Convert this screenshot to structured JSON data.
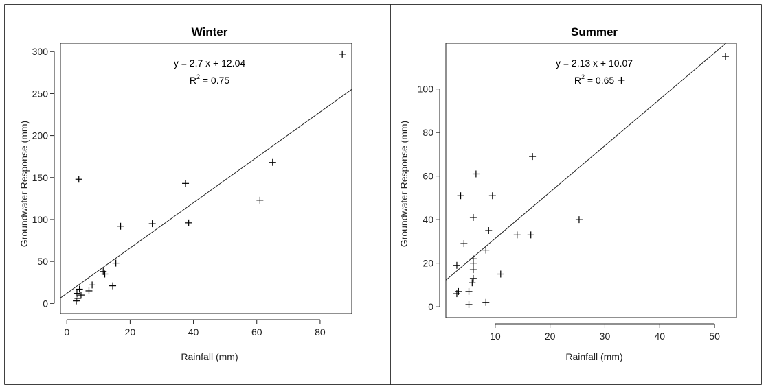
{
  "chart_data": [
    {
      "type": "scatter",
      "title": "Winter",
      "xlabel": "Rainfall (mm)",
      "ylabel": "Groundwater Response (mm)",
      "xlim": [
        -2,
        90
      ],
      "ylim": [
        -12,
        310
      ],
      "xticks": [
        0,
        20,
        40,
        60,
        80
      ],
      "yticks": [
        0,
        50,
        100,
        150,
        200,
        250,
        300
      ],
      "grid": false,
      "legend": "none",
      "annotations": [
        "y = 2.7 x + 12.04",
        "R",
        "2",
        " =  0.75"
      ],
      "fit": {
        "slope": 2.7,
        "intercept": 12.04
      },
      "points": [
        {
          "x": 3,
          "y": 3
        },
        {
          "x": 3.5,
          "y": 6
        },
        {
          "x": 3.2,
          "y": 12
        },
        {
          "x": 4,
          "y": 17
        },
        {
          "x": 4.5,
          "y": 10
        },
        {
          "x": 3.8,
          "y": 148
        },
        {
          "x": 7,
          "y": 15
        },
        {
          "x": 8,
          "y": 22
        },
        {
          "x": 11.5,
          "y": 38
        },
        {
          "x": 12,
          "y": 35
        },
        {
          "x": 14.5,
          "y": 21
        },
        {
          "x": 15.5,
          "y": 48
        },
        {
          "x": 17,
          "y": 92
        },
        {
          "x": 27,
          "y": 95
        },
        {
          "x": 37.5,
          "y": 143
        },
        {
          "x": 38.5,
          "y": 96
        },
        {
          "x": 61,
          "y": 123
        },
        {
          "x": 65,
          "y": 168
        },
        {
          "x": 87,
          "y": 297
        }
      ]
    },
    {
      "type": "scatter",
      "title": "Summer",
      "xlabel": "Rainfall (mm)",
      "ylabel": "Groundwater Response (mm)",
      "xlim": [
        1,
        54
      ],
      "ylim": [
        -5,
        121
      ],
      "xticks": [
        10,
        20,
        30,
        40,
        50
      ],
      "yticks": [
        0,
        20,
        40,
        60,
        80,
        100
      ],
      "grid": false,
      "legend": "none",
      "annotations": [
        "y = 2.13 x + 10.07",
        "R",
        "2",
        " =  0.65"
      ],
      "fit": {
        "slope": 2.13,
        "intercept": 10.07
      },
      "points": [
        {
          "x": 3,
          "y": 19
        },
        {
          "x": 3,
          "y": 6
        },
        {
          "x": 3.3,
          "y": 7
        },
        {
          "x": 3.7,
          "y": 51
        },
        {
          "x": 4.3,
          "y": 29
        },
        {
          "x": 5.2,
          "y": 1
        },
        {
          "x": 5.2,
          "y": 7
        },
        {
          "x": 5.8,
          "y": 11
        },
        {
          "x": 6,
          "y": 13
        },
        {
          "x": 6,
          "y": 17
        },
        {
          "x": 6,
          "y": 20
        },
        {
          "x": 6,
          "y": 22
        },
        {
          "x": 6,
          "y": 41
        },
        {
          "x": 6.5,
          "y": 61
        },
        {
          "x": 8.3,
          "y": 2
        },
        {
          "x": 8.3,
          "y": 26
        },
        {
          "x": 8.8,
          "y": 35
        },
        {
          "x": 9.5,
          "y": 51
        },
        {
          "x": 11,
          "y": 15
        },
        {
          "x": 14,
          "y": 33
        },
        {
          "x": 16.5,
          "y": 33
        },
        {
          "x": 16.8,
          "y": 69
        },
        {
          "x": 25.3,
          "y": 40
        },
        {
          "x": 33,
          "y": 104
        },
        {
          "x": 52,
          "y": 115
        }
      ]
    }
  ]
}
